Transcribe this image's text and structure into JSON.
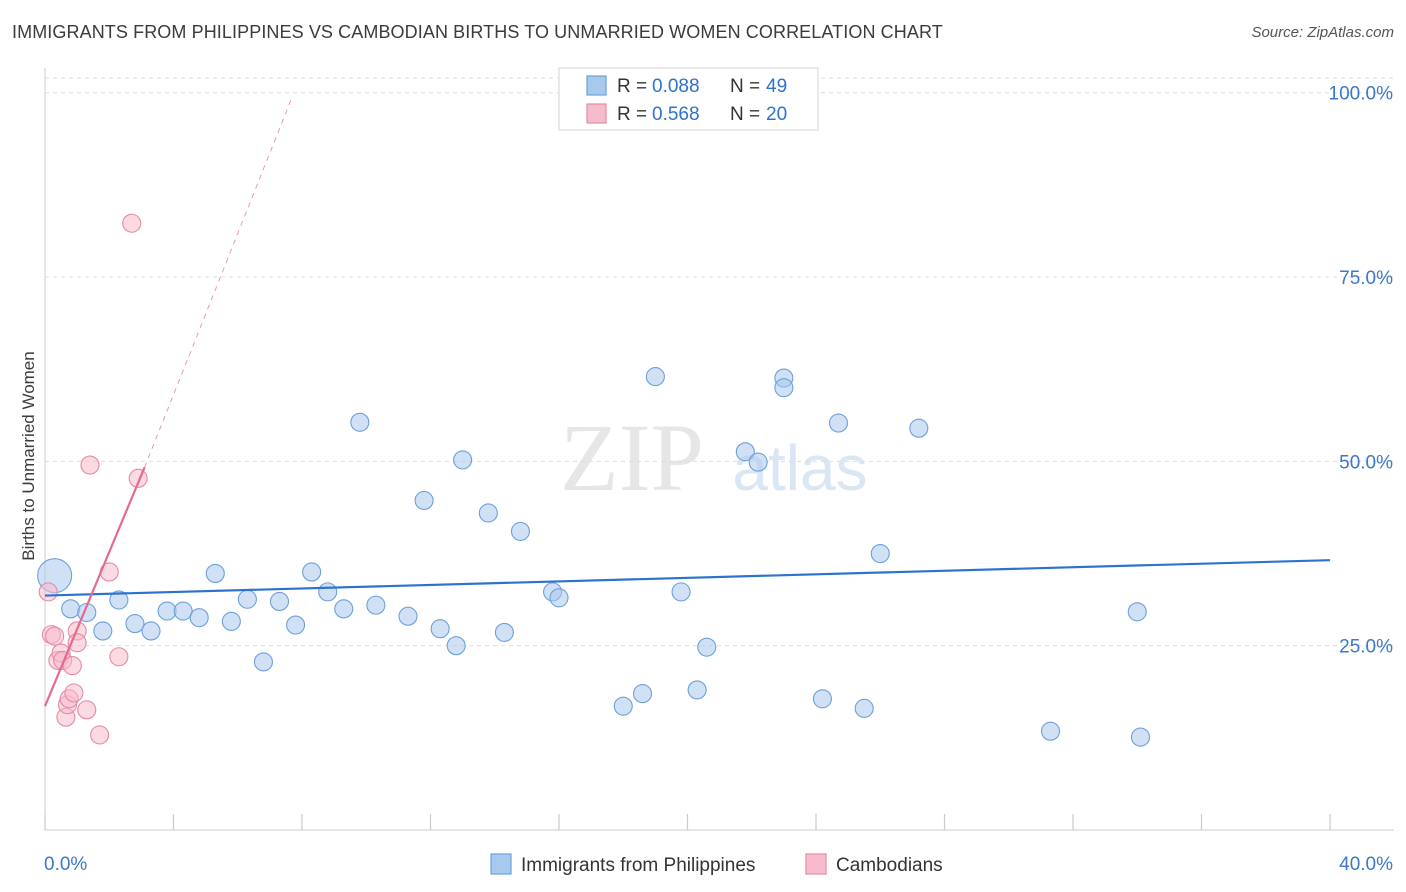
{
  "title": "IMMIGRANTS FROM PHILIPPINES VS CAMBODIAN BIRTHS TO UNMARRIED WOMEN CORRELATION CHART",
  "source": "Source: ZipAtlas.com",
  "watermark": {
    "zip": "ZIP",
    "atlas": "atlas"
  },
  "legend_stats": {
    "r_label": "R =",
    "n_label": "N =",
    "rows": [
      {
        "r": "0.088",
        "n": "49"
      },
      {
        "r": "0.568",
        "n": "20"
      }
    ]
  },
  "colors": {
    "blue_fill": "#a9c8ee",
    "blue_stroke": "#6d9fd9",
    "blue_line": "#2e72cf",
    "pink_fill": "#f7bccb",
    "pink_stroke": "#e58aa5",
    "pink_line": "#e46a90",
    "axis_text": "#3b78c9",
    "grid": "#dddddd"
  },
  "chart_data": {
    "type": "scatter",
    "xlabel": "",
    "ylabel": "Births to Unmarried Women",
    "x_tick_labels": [
      "0.0%",
      "40.0%"
    ],
    "y_tick_labels": [
      "100.0%",
      "75.0%",
      "50.0%",
      "25.0%"
    ],
    "xlim": [
      0,
      40
    ],
    "ylim": [
      0,
      102
    ],
    "y_ticks": [
      100,
      75,
      50,
      25
    ],
    "grid": true,
    "legend_position": "bottom",
    "series": [
      {
        "name": "Immigrants from Philippines",
        "color": "blue",
        "trend": {
          "x0": 0,
          "y0": 31.8,
          "x1": 40,
          "y1": 36.6
        },
        "points": [
          {
            "x": 0.3,
            "y": 34.5,
            "big": true
          },
          {
            "x": 0.8,
            "y": 30.0
          },
          {
            "x": 1.3,
            "y": 29.5
          },
          {
            "x": 1.8,
            "y": 27.0
          },
          {
            "x": 2.3,
            "y": 31.2
          },
          {
            "x": 2.8,
            "y": 28.0
          },
          {
            "x": 3.3,
            "y": 27.0
          },
          {
            "x": 3.8,
            "y": 29.7
          },
          {
            "x": 4.3,
            "y": 29.7
          },
          {
            "x": 4.8,
            "y": 28.8
          },
          {
            "x": 5.3,
            "y": 34.8
          },
          {
            "x": 5.8,
            "y": 28.3
          },
          {
            "x": 6.3,
            "y": 31.3
          },
          {
            "x": 6.8,
            "y": 22.8
          },
          {
            "x": 7.3,
            "y": 31.0
          },
          {
            "x": 7.8,
            "y": 27.8
          },
          {
            "x": 8.3,
            "y": 35.0
          },
          {
            "x": 8.8,
            "y": 32.3
          },
          {
            "x": 9.3,
            "y": 30.0
          },
          {
            "x": 9.8,
            "y": 55.3
          },
          {
            "x": 10.3,
            "y": 30.5
          },
          {
            "x": 11.3,
            "y": 29.0
          },
          {
            "x": 11.8,
            "y": 44.7
          },
          {
            "x": 12.3,
            "y": 27.3
          },
          {
            "x": 12.8,
            "y": 25.0
          },
          {
            "x": 13.0,
            "y": 50.2
          },
          {
            "x": 13.8,
            "y": 43.0
          },
          {
            "x": 14.3,
            "y": 26.8
          },
          {
            "x": 14.8,
            "y": 40.5
          },
          {
            "x": 15.8,
            "y": 32.3
          },
          {
            "x": 16.0,
            "y": 31.5
          },
          {
            "x": 18.0,
            "y": 16.8
          },
          {
            "x": 18.6,
            "y": 18.5
          },
          {
            "x": 19.0,
            "y": 61.5
          },
          {
            "x": 19.8,
            "y": 32.3
          },
          {
            "x": 20.3,
            "y": 19.0
          },
          {
            "x": 20.6,
            "y": 24.8
          },
          {
            "x": 21.8,
            "y": 51.3
          },
          {
            "x": 22.2,
            "y": 49.9
          },
          {
            "x": 23.0,
            "y": 61.3
          },
          {
            "x": 23.0,
            "y": 60.0
          },
          {
            "x": 24.2,
            "y": 17.8
          },
          {
            "x": 24.7,
            "y": 55.2
          },
          {
            "x": 25.5,
            "y": 16.5
          },
          {
            "x": 26.0,
            "y": 37.5
          },
          {
            "x": 27.2,
            "y": 54.5
          },
          {
            "x": 31.3,
            "y": 13.4
          },
          {
            "x": 34.0,
            "y": 29.6
          },
          {
            "x": 34.1,
            "y": 12.6
          }
        ]
      },
      {
        "name": "Cambodians",
        "color": "pink",
        "trend": {
          "x0": 0,
          "y0": 16.8,
          "x1": 3.1,
          "y1": 49.2,
          "dash_x1": 7.7,
          "dash_y1": 99.5
        },
        "points": [
          {
            "x": 0.1,
            "y": 32.3
          },
          {
            "x": 0.2,
            "y": 26.5
          },
          {
            "x": 0.3,
            "y": 26.3
          },
          {
            "x": 0.4,
            "y": 23.0
          },
          {
            "x": 0.5,
            "y": 24.0
          },
          {
            "x": 0.55,
            "y": 23.0
          },
          {
            "x": 0.65,
            "y": 15.3
          },
          {
            "x": 0.7,
            "y": 17.0
          },
          {
            "x": 0.75,
            "y": 17.8
          },
          {
            "x": 0.85,
            "y": 22.3
          },
          {
            "x": 0.9,
            "y": 18.6
          },
          {
            "x": 1.0,
            "y": 27.0
          },
          {
            "x": 1.0,
            "y": 25.4
          },
          {
            "x": 1.3,
            "y": 16.3
          },
          {
            "x": 1.4,
            "y": 49.5
          },
          {
            "x": 1.7,
            "y": 12.9
          },
          {
            "x": 2.0,
            "y": 35.0
          },
          {
            "x": 2.3,
            "y": 23.5
          },
          {
            "x": 2.7,
            "y": 82.3
          },
          {
            "x": 2.9,
            "y": 47.7
          }
        ]
      }
    ]
  }
}
